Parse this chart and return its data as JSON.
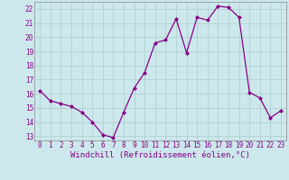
{
  "x": [
    0,
    1,
    2,
    3,
    4,
    5,
    6,
    7,
    8,
    9,
    10,
    11,
    12,
    13,
    14,
    15,
    16,
    17,
    18,
    19,
    20,
    21,
    22,
    23
  ],
  "y": [
    16.2,
    15.5,
    15.3,
    15.1,
    14.7,
    14.0,
    13.1,
    12.9,
    14.7,
    16.4,
    17.5,
    19.6,
    19.8,
    21.3,
    18.9,
    21.4,
    21.2,
    22.2,
    22.1,
    21.4,
    16.1,
    15.7,
    14.3,
    14.8
  ],
  "line_color": "#880088",
  "marker": "D",
  "marker_size": 2.0,
  "bg_color": "#cce8ec",
  "grid_color": "#aacccc",
  "xlabel": "Windchill (Refroidissement éolien,°C)",
  "ylim": [
    12.7,
    22.5
  ],
  "xlim": [
    -0.5,
    23.5
  ],
  "yticks": [
    13,
    14,
    15,
    16,
    17,
    18,
    19,
    20,
    21,
    22
  ],
  "xticks": [
    0,
    1,
    2,
    3,
    4,
    5,
    6,
    7,
    8,
    9,
    10,
    11,
    12,
    13,
    14,
    15,
    16,
    17,
    18,
    19,
    20,
    21,
    22,
    23
  ],
  "tick_fontsize": 5.5,
  "xlabel_fontsize": 6.5,
  "linewidth": 0.9
}
